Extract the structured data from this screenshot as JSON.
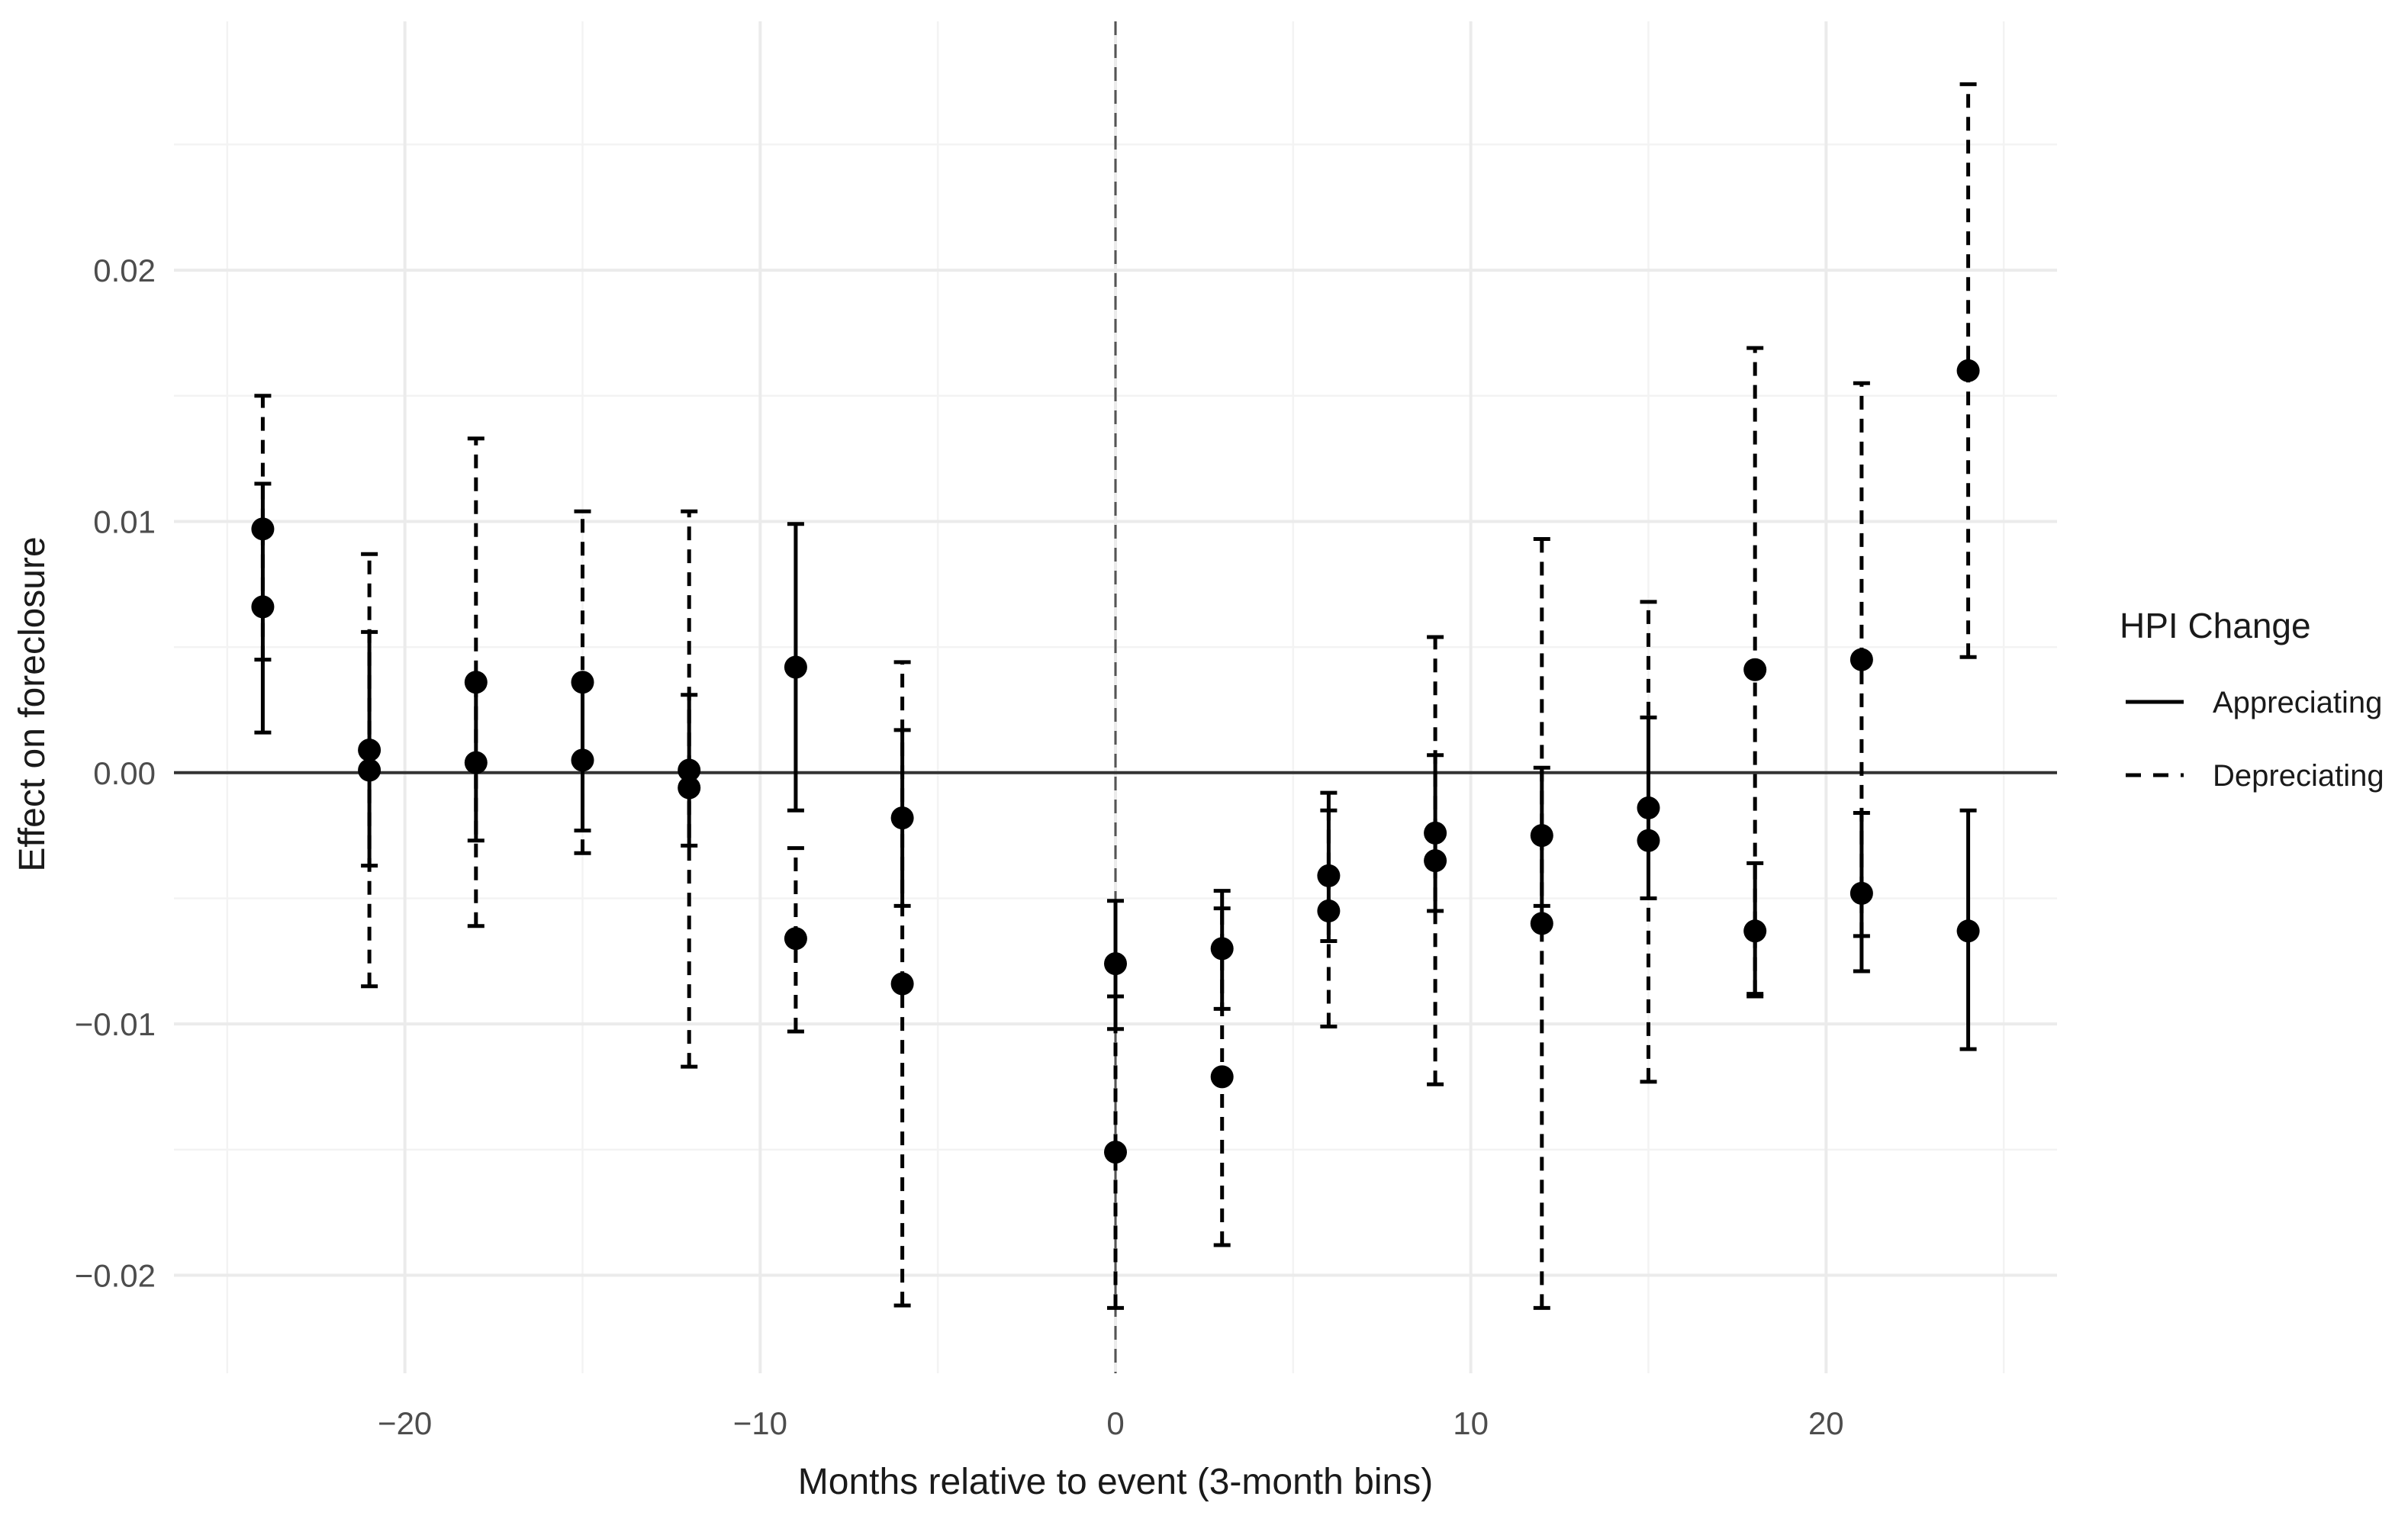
{
  "chart_data": {
    "type": "scatter",
    "title": "",
    "xlabel": "Months relative to event (3-month bins)",
    "ylabel": "Effect on foreclosure",
    "xlim": [
      -26.5,
      26.5
    ],
    "ylim": [
      -0.0239,
      0.0299
    ],
    "x_ticks": [
      -20,
      -10,
      0,
      10,
      20
    ],
    "x_tick_labels": [
      "−20",
      "−10",
      "0",
      "10",
      "20"
    ],
    "y_ticks": [
      -0.02,
      -0.01,
      0.0,
      0.01,
      0.02
    ],
    "y_tick_labels": [
      "−0.02",
      "−0.01",
      "0.00",
      "0.01",
      "0.02"
    ],
    "grid": true,
    "reference_lines": {
      "horizontal": 0,
      "vertical_dashed": 0
    },
    "legend": {
      "title": "HPI Change",
      "placement": "right",
      "entries": [
        {
          "label": "Appreciating",
          "linetype": "solid"
        },
        {
          "label": "Depreciating",
          "linetype": "dashed"
        }
      ]
    },
    "series": [
      {
        "name": "Appreciating",
        "linetype": "solid",
        "points": [
          {
            "x": -24,
            "y": 0.0066,
            "lo": 0.0016,
            "hi": 0.0115
          },
          {
            "x": -21,
            "y": 0.0009,
            "lo": -0.0037,
            "hi": 0.0056
          },
          {
            "x": -18,
            "y": 0.0004,
            "lo": -0.0027,
            "hi": 0.0036
          },
          {
            "x": -15,
            "y": 0.0005,
            "lo": -0.0023,
            "hi": 0.0034
          },
          {
            "x": -12,
            "y": 0.0001,
            "lo": -0.0029,
            "hi": 0.0031
          },
          {
            "x": -9,
            "y": 0.0042,
            "lo": -0.0015,
            "hi": 0.0099
          },
          {
            "x": -6,
            "y": -0.0018,
            "lo": -0.0053,
            "hi": 0.0017
          },
          {
            "x": 0,
            "y": -0.0076,
            "lo": -0.0102,
            "hi": -0.0051
          },
          {
            "x": 3,
            "y": -0.007,
            "lo": -0.0094,
            "hi": -0.0047
          },
          {
            "x": 6,
            "y": -0.0041,
            "lo": -0.0067,
            "hi": -0.0008
          },
          {
            "x": 9,
            "y": -0.0024,
            "lo": -0.0055,
            "hi": 0.0007
          },
          {
            "x": 12,
            "y": -0.0025,
            "lo": -0.0053,
            "hi": 0.0002
          },
          {
            "x": 15,
            "y": -0.0014,
            "lo": -0.005,
            "hi": 0.0022
          },
          {
            "x": 18,
            "y": -0.0063,
            "lo": -0.0089,
            "hi": -0.0036
          },
          {
            "x": 21,
            "y": -0.0048,
            "lo": -0.0079,
            "hi": -0.0016
          },
          {
            "x": 24,
            "y": -0.0063,
            "lo": -0.011,
            "hi": -0.0015
          }
        ]
      },
      {
        "name": "Depreciating",
        "linetype": "dashed",
        "points": [
          {
            "x": -24,
            "y": 0.0097,
            "lo": 0.0045,
            "hi": 0.015
          },
          {
            "x": -21,
            "y": 0.0001,
            "lo": -0.0085,
            "hi": 0.0087
          },
          {
            "x": -18,
            "y": 0.0036,
            "lo": -0.0061,
            "hi": 0.0133
          },
          {
            "x": -15,
            "y": 0.0036,
            "lo": -0.0032,
            "hi": 0.0104
          },
          {
            "x": -12,
            "y": -0.0006,
            "lo": -0.0117,
            "hi": 0.0104
          },
          {
            "x": -9,
            "y": -0.0066,
            "lo": -0.0103,
            "hi": -0.003
          },
          {
            "x": -6,
            "y": -0.0084,
            "lo": -0.0212,
            "hi": 0.0044
          },
          {
            "x": 0,
            "y": -0.0151,
            "lo": -0.0213,
            "hi": -0.0089
          },
          {
            "x": 3,
            "y": -0.0121,
            "lo": -0.0188,
            "hi": -0.0054
          },
          {
            "x": 6,
            "y": -0.0055,
            "lo": -0.0101,
            "hi": -0.0015
          },
          {
            "x": 9,
            "y": -0.0035,
            "lo": -0.0124,
            "hi": 0.0054
          },
          {
            "x": 12,
            "y": -0.006,
            "lo": -0.0213,
            "hi": 0.0093
          },
          {
            "x": 15,
            "y": -0.0027,
            "lo": -0.0123,
            "hi": 0.0068
          },
          {
            "x": 18,
            "y": 0.0041,
            "lo": -0.0088,
            "hi": 0.0169
          },
          {
            "x": 21,
            "y": 0.0045,
            "lo": -0.0065,
            "hi": 0.0155
          },
          {
            "x": 24,
            "y": 0.016,
            "lo": 0.0046,
            "hi": 0.0274
          }
        ]
      }
    ]
  }
}
